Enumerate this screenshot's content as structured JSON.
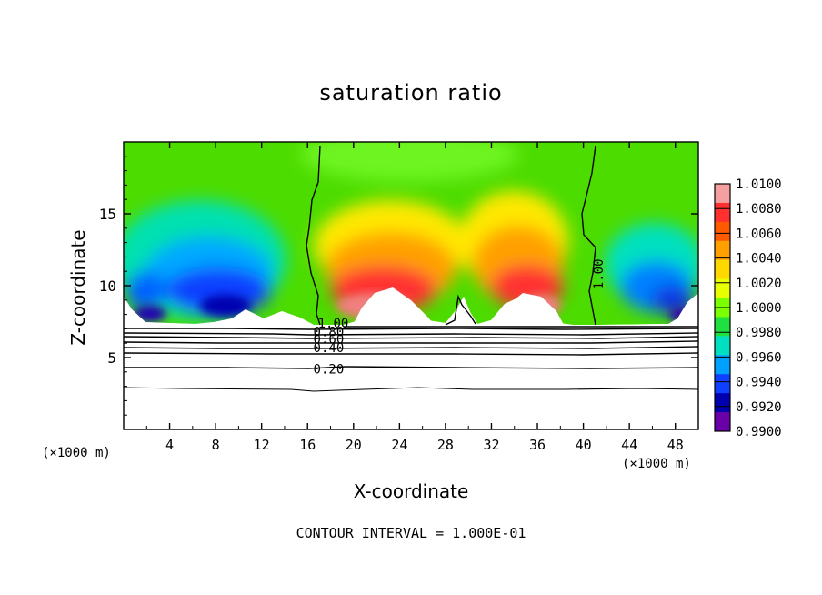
{
  "chart_data": {
    "type": "heatmap",
    "title": "saturation ratio",
    "xlabel": "X-coordinate",
    "ylabel": "Z-coordinate",
    "x_unit_label_left": "(×1000 m)",
    "x_unit_label_right": "(×1000 m)",
    "xlim": [
      0,
      50
    ],
    "ylim": [
      0,
      20
    ],
    "x_ticks": [
      4,
      8,
      12,
      16,
      20,
      24,
      28,
      32,
      36,
      40,
      44,
      48
    ],
    "y_ticks": [
      5,
      10,
      15
    ],
    "colorbar": {
      "levels": [
        1.01,
        1.008,
        1.006,
        1.004,
        1.002,
        1.0,
        0.998,
        0.996,
        0.994,
        0.992,
        0.99
      ],
      "labels": [
        "1.0100",
        "1.0080",
        "1.0060",
        "1.0040",
        "1.0020",
        "1.0000",
        "0.9980",
        "0.9960",
        "0.9940",
        "0.9920",
        "0.9900"
      ],
      "colors": [
        "#f4a0a0",
        "#ff3030",
        "#ff5a00",
        "#ffa000",
        "#ffd800",
        "#e8ff00",
        "#7cff00",
        "#20e040",
        "#00e0c0",
        "#00a0ff",
        "#1040ff",
        "#0000b0",
        "#6a00a8"
      ]
    },
    "contour_labels": [
      {
        "text": "1.00",
        "x": 16.9,
        "y": 7.4
      },
      {
        "text": "0.80",
        "x": 16.5,
        "y": 6.8
      },
      {
        "text": "0.60",
        "x": 16.5,
        "y": 6.3
      },
      {
        "text": "0.40",
        "x": 16.5,
        "y": 5.7
      },
      {
        "text": "0.20",
        "x": 16.5,
        "y": 4.2
      },
      {
        "text": "1.00",
        "x": 41.3,
        "y": 10.8
      }
    ],
    "contour_interval_text": "CONTOUR INTERVAL = 1.000E-01"
  }
}
